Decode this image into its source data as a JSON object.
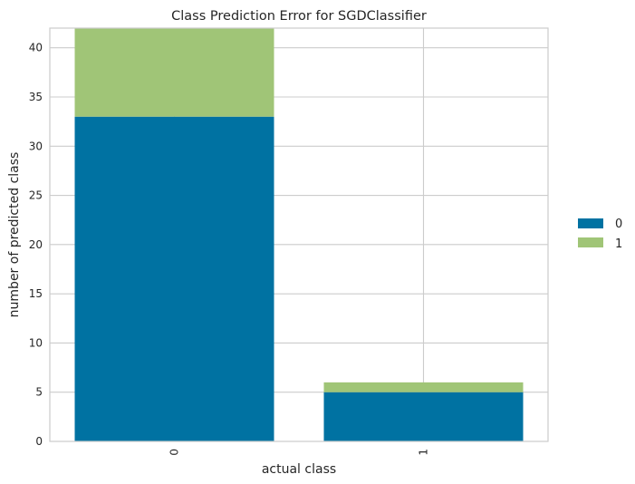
{
  "chart_data": {
    "type": "bar",
    "stacked": true,
    "title": "Class Prediction Error for SGDClassifier",
    "xlabel": "actual class",
    "ylabel": "number of predicted class",
    "categories": [
      "0",
      "1"
    ],
    "series": [
      {
        "name": "0",
        "values": [
          33,
          5
        ],
        "color": "#0072a2"
      },
      {
        "name": "1",
        "values": [
          9,
          1
        ],
        "color": "#a0c577"
      }
    ],
    "ylim": [
      0,
      42
    ],
    "yticks": [
      0,
      5,
      10,
      15,
      20,
      25,
      30,
      35,
      40
    ],
    "grid": true,
    "legend_position": "right"
  }
}
